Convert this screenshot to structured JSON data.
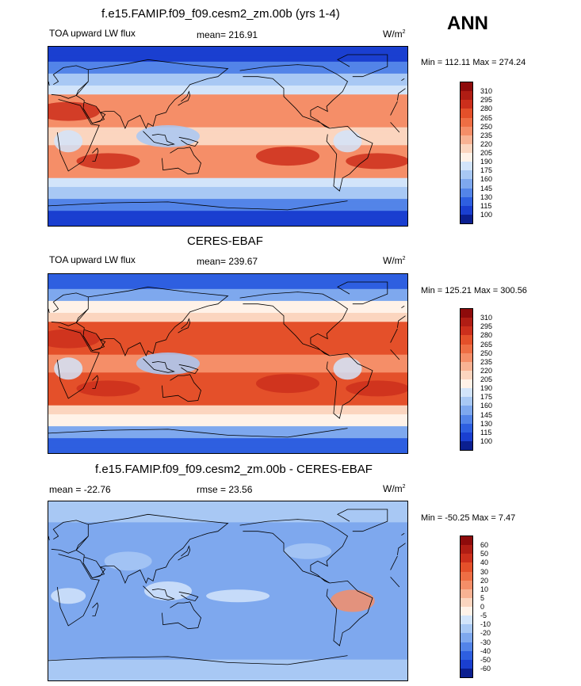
{
  "season": "ANN",
  "panels": [
    {
      "title": "f.e15.FAMIP.f09_f09.cesm2_zm.00b (yrs 1-4)",
      "variable": "TOA upward LW flux",
      "stat": "mean= 216.91",
      "units": "W/m",
      "units_exp": "2",
      "minmax": "Min = 112.11 Max = 274.24"
    },
    {
      "title": "CERES-EBAF",
      "variable": "TOA upward LW flux",
      "stat": "mean= 239.67",
      "units": "W/m",
      "units_exp": "2",
      "minmax": "Min = 125.21 Max = 300.56"
    },
    {
      "title": "f.e15.FAMIP.f09_f09.cesm2_zm.00b - CERES-EBAF",
      "variable": "mean = -22.76",
      "stat": "rmse =  23.56",
      "units": "W/m",
      "units_exp": "2",
      "minmax": "Min = -50.25 Max =   7.47"
    }
  ],
  "chart_data": [
    {
      "type": "heatmap",
      "title": "f.e15.FAMIP.f09_f09.cesm2_zm.00b (yrs 1-4)",
      "variable": "TOA upward LW flux",
      "units": "W/m2",
      "mean": 216.91,
      "min": 112.11,
      "max": 274.24,
      "colorbar_levels": [
        "310",
        "295",
        "280",
        "265",
        "250",
        "235",
        "220",
        "205",
        "190",
        "175",
        "160",
        "145",
        "130",
        "115",
        "100"
      ],
      "colorbar_colors": [
        "#8e0b0b",
        "#b01d14",
        "#cc2f1c",
        "#e4502a",
        "#ee6e44",
        "#f58e68",
        "#f8b293",
        "#fbd5bf",
        "#fff2e8",
        "#d2e4fa",
        "#a8c8f4",
        "#7ea8ee",
        "#5384e8",
        "#2e5fe0",
        "#1a3fd0",
        "#0b1f90"
      ]
    },
    {
      "type": "heatmap",
      "title": "CERES-EBAF",
      "variable": "TOA upward LW flux",
      "units": "W/m2",
      "mean": 239.67,
      "min": 125.21,
      "max": 300.56,
      "colorbar_levels": [
        "310",
        "295",
        "280",
        "265",
        "250",
        "235",
        "220",
        "205",
        "190",
        "175",
        "160",
        "145",
        "130",
        "115",
        "100"
      ],
      "colorbar_colors": [
        "#8e0b0b",
        "#b01d14",
        "#cc2f1c",
        "#e4502a",
        "#ee6e44",
        "#f58e68",
        "#f8b293",
        "#fbd5bf",
        "#fff2e8",
        "#d2e4fa",
        "#a8c8f4",
        "#7ea8ee",
        "#5384e8",
        "#2e5fe0",
        "#1a3fd0",
        "#0b1f90"
      ]
    },
    {
      "type": "heatmap",
      "title": "f.e15.FAMIP.f09_f09.cesm2_zm.00b - CERES-EBAF",
      "units": "W/m2",
      "mean": -22.76,
      "rmse": 23.56,
      "min": -50.25,
      "max": 7.47,
      "colorbar_levels": [
        "60",
        "50",
        "40",
        "30",
        "20",
        "10",
        "5",
        "0",
        "-5",
        "-10",
        "-20",
        "-30",
        "-40",
        "-50",
        "-60"
      ],
      "colorbar_colors": [
        "#8e0b0b",
        "#b01d14",
        "#cc2f1c",
        "#e4502a",
        "#ee6e44",
        "#f58e68",
        "#f8b293",
        "#fbd5bf",
        "#fff2e8",
        "#d2e4fa",
        "#a8c8f4",
        "#7ea8ee",
        "#5384e8",
        "#2e5fe0",
        "#1a3fd0",
        "#0b1f90"
      ]
    }
  ]
}
